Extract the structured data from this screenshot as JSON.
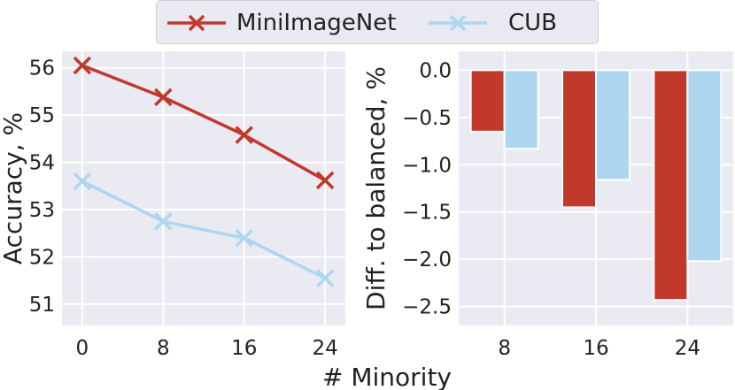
{
  "colors": {
    "minimagenet": "#c0392b",
    "cub": "#aed6f1",
    "panel_bg": "#eaeaf2",
    "grid": "#ffffff",
    "text": "#222222"
  },
  "legend": {
    "items": [
      {
        "label": "MiniImageNet",
        "color": "#c0392b",
        "marker": "x"
      },
      {
        "label": "CUB",
        "color": "#aed6f1",
        "marker": "x"
      }
    ]
  },
  "shared_xlabel": "# Minority",
  "chart_data": [
    {
      "type": "line",
      "xlabel": "",
      "ylabel": "Accuracy, %",
      "x": [
        0,
        8,
        16,
        24
      ],
      "xticks": [
        "0",
        "8",
        "16",
        "24"
      ],
      "yticks": [
        "51",
        "52",
        "53",
        "54",
        "55",
        "56"
      ],
      "ylim": [
        50.55,
        56.35
      ],
      "xlim": [
        -2,
        26
      ],
      "grid": true,
      "series": [
        {
          "name": "MiniImageNet",
          "values": [
            56.05,
            55.38,
            54.58,
            53.62
          ]
        },
        {
          "name": "CUB",
          "values": [
            53.6,
            52.75,
            52.4,
            51.55
          ]
        }
      ]
    },
    {
      "type": "bar",
      "ylabel": "Diff. to balanced, %",
      "categories": [
        "8",
        "16",
        "24"
      ],
      "yticks": [
        "0.0",
        "−0.5",
        "−1.0",
        "−1.5",
        "−2.0",
        "−2.5"
      ],
      "ylim": [
        -2.7,
        0.2
      ],
      "grid": true,
      "series": [
        {
          "name": "MiniImageNet",
          "values": [
            -0.65,
            -1.45,
            -2.43
          ]
        },
        {
          "name": "CUB",
          "values": [
            -0.83,
            -1.16,
            -2.02
          ]
        }
      ]
    }
  ]
}
